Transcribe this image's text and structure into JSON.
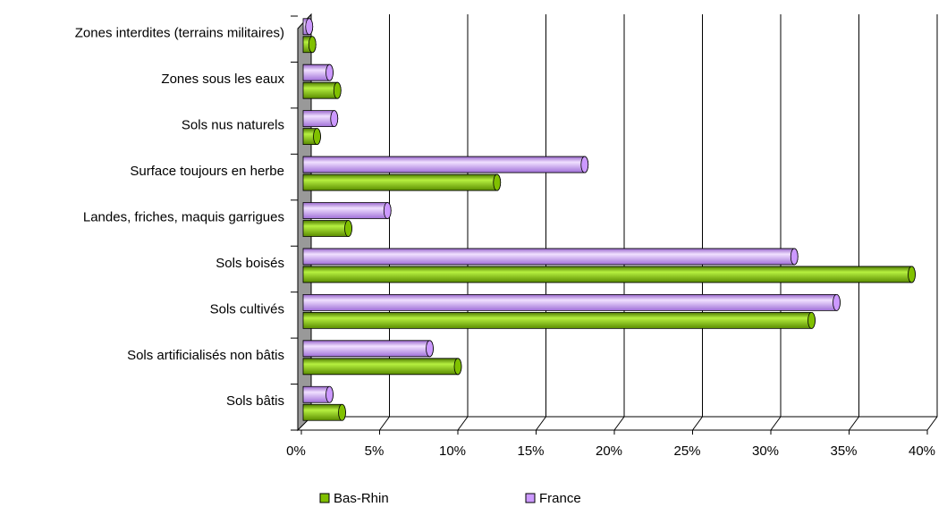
{
  "chart_data": {
    "type": "bar",
    "orientation": "horizontal",
    "categories": [
      "Sols bâtis",
      "Sols artificialisés non bâtis",
      "Sols cultivés",
      "Sols boisés",
      "Landes, friches, maquis garrigues",
      "Surface toujours en herbe",
      "Sols nus naturels",
      "Zones sous les eaux",
      "Zones interdites (terrains militaires)"
    ],
    "series": [
      {
        "name": "Bas-Rhin",
        "color": "#80c000",
        "values": [
          2.6,
          10.0,
          32.6,
          39.0,
          3.0,
          12.5,
          1.0,
          2.3,
          0.7
        ]
      },
      {
        "name": "France",
        "color": "#cc99ff",
        "values": [
          1.8,
          8.2,
          34.2,
          31.5,
          5.5,
          18.1,
          2.1,
          1.8,
          0.5
        ]
      }
    ],
    "xlim": [
      0,
      40
    ],
    "xticks": [
      {
        "value": 0,
        "label": "0%"
      },
      {
        "value": 5,
        "label": "5%"
      },
      {
        "value": 10,
        "label": "10%"
      },
      {
        "value": 15,
        "label": "15%"
      },
      {
        "value": 20,
        "label": "20%"
      },
      {
        "value": 25,
        "label": "25%"
      },
      {
        "value": 30,
        "label": "30%"
      },
      {
        "value": 35,
        "label": "35%"
      },
      {
        "value": 40,
        "label": "40%"
      }
    ],
    "grid": true,
    "legend": "bottom"
  }
}
